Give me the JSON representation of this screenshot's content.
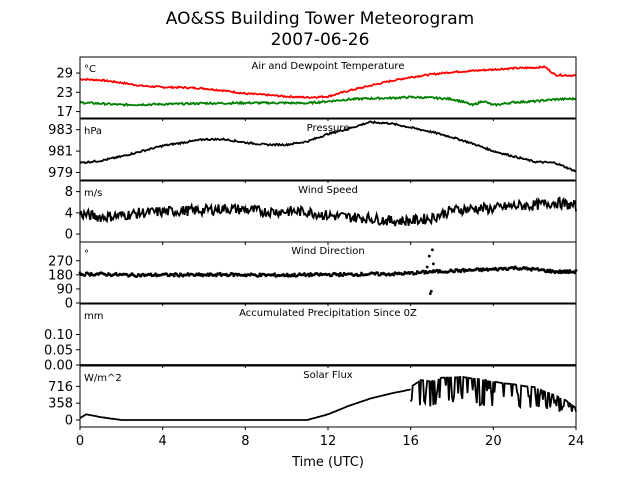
{
  "figure": {
    "title_line1": "AO&SS Building Tower Meteorogram",
    "title_line2": "2007-06-26",
    "xlabel": "Time (UTC)"
  },
  "chart_data": [
    {
      "type": "line",
      "title": "Air and Dewpoint Temperature",
      "unit_label": "°C",
      "ylim": [
        15,
        34
      ],
      "yticks": [
        17,
        23,
        29
      ],
      "xlim": [
        0,
        24
      ],
      "xticks": [
        0,
        4,
        8,
        12,
        16,
        20,
        24
      ],
      "series": [
        {
          "color": "#ff0000",
          "x": [
            0,
            1,
            2,
            3,
            4,
            5,
            6,
            7,
            8,
            9,
            10,
            11,
            12,
            13,
            14,
            15,
            16,
            17,
            18,
            19,
            20,
            21,
            22,
            22.5,
            23,
            24
          ],
          "y": [
            27.1,
            26.8,
            26.0,
            25.0,
            24.6,
            24.5,
            24.2,
            23.5,
            22.6,
            22.2,
            21.7,
            21.4,
            21.7,
            23.5,
            25.0,
            26.5,
            27.7,
            28.6,
            29.3,
            29.7,
            30.1,
            30.5,
            30.7,
            30.9,
            28.4,
            28.2
          ],
          "noise": 0.25
        },
        {
          "color": "#008000",
          "x": [
            0,
            1,
            2,
            3,
            4,
            5,
            6,
            7,
            8,
            9,
            10,
            11,
            12,
            13,
            14,
            15,
            16,
            17,
            18,
            18.5,
            19,
            19.5,
            20,
            21,
            22,
            23,
            24
          ],
          "y": [
            19.8,
            19.5,
            19.1,
            19.2,
            19.3,
            19.4,
            19.6,
            19.6,
            19.7,
            19.7,
            19.7,
            19.6,
            20.2,
            20.8,
            21.1,
            21.2,
            21.5,
            21.3,
            20.9,
            20.1,
            19.0,
            20.3,
            19.0,
            19.9,
            20.2,
            20.8,
            21.0
          ],
          "noise": 0.3
        }
      ]
    },
    {
      "type": "line",
      "title": "Pressure",
      "unit_label": "hPa",
      "ylim": [
        978.3,
        984.0
      ],
      "yticks": [
        979,
        981,
        983
      ],
      "xlim": [
        0,
        24
      ],
      "series": [
        {
          "color": "#000000",
          "x": [
            0,
            1,
            2,
            3,
            4,
            5,
            6,
            7,
            8,
            9,
            10,
            11,
            12,
            13,
            14,
            15,
            16,
            17,
            18,
            19,
            20,
            21,
            22,
            23,
            24
          ],
          "y": [
            979.9,
            980.1,
            980.5,
            981.0,
            981.5,
            981.8,
            982.1,
            982.1,
            981.8,
            981.6,
            981.6,
            981.9,
            982.6,
            983.1,
            983.7,
            983.6,
            983.2,
            982.8,
            982.3,
            981.7,
            981.0,
            980.5,
            980.0,
            979.9,
            979.1
          ],
          "noise": 0.08
        }
      ]
    },
    {
      "type": "line",
      "title": "Wind Speed",
      "unit_label": "m/s",
      "ylim": [
        -1.5,
        10
      ],
      "yticks": [
        0,
        4,
        8
      ],
      "xlim": [
        0,
        24
      ],
      "series": [
        {
          "color": "#000000",
          "x": [
            0,
            1,
            2,
            3,
            4,
            5,
            6,
            7,
            8,
            9,
            10,
            11,
            12,
            13,
            14,
            15,
            16,
            17,
            18,
            19,
            20,
            21,
            22,
            23,
            24
          ],
          "y": [
            3.8,
            3.2,
            3.5,
            4.0,
            4.2,
            4.4,
            4.5,
            4.8,
            4.6,
            4.2,
            4.3,
            4.2,
            3.5,
            3.2,
            3.0,
            2.5,
            2.5,
            3.0,
            4.5,
            4.8,
            4.8,
            5.3,
            5.4,
            6.0,
            5.2
          ],
          "noise": 1.0
        }
      ]
    },
    {
      "type": "scatter",
      "title": "Wind Direction",
      "unit_label": "°",
      "ylim": [
        0,
        390
      ],
      "yticks": [
        0,
        90,
        180,
        270
      ],
      "xlim": [
        0,
        24
      ],
      "series": [
        {
          "color": "#000000",
          "x": [
            0,
            1,
            2,
            3,
            4,
            5,
            6,
            7,
            8,
            9,
            10,
            11,
            12,
            13,
            14,
            15,
            16,
            17,
            18,
            19,
            20,
            21,
            22,
            23,
            24
          ],
          "y": [
            185,
            185,
            180,
            178,
            180,
            180,
            178,
            182,
            180,
            178,
            178,
            180,
            182,
            182,
            185,
            185,
            190,
            200,
            205,
            210,
            215,
            225,
            215,
            200,
            200
          ],
          "noise": 9
        }
      ]
    },
    {
      "type": "line",
      "title": "Accumulated Precipitation Since 0Z",
      "unit_label": "mm",
      "ylim": [
        0,
        0.2
      ],
      "yticks": [
        0.0,
        0.05,
        0.1
      ],
      "ytick_labels": [
        "0.00",
        "0.05",
        "0.10"
      ],
      "xlim": [
        0,
        24
      ],
      "series": [
        {
          "color": "#000000",
          "x": [
            0,
            24
          ],
          "y": [
            0,
            0
          ],
          "noise": 0
        }
      ]
    },
    {
      "type": "line",
      "title": "Solar Flux",
      "unit_label": "W/m^2",
      "ylim": [
        -150,
        1150
      ],
      "yticks": [
        0,
        358,
        716
      ],
      "xlim": [
        0,
        24
      ],
      "xticks": [
        0,
        4,
        8,
        12,
        16,
        20,
        24
      ],
      "series": [
        {
          "color": "#000000",
          "x": [
            0,
            0.3,
            1,
            2,
            4,
            6,
            8,
            10,
            11,
            12,
            13,
            14,
            15,
            16
          ],
          "y": [
            40,
            120,
            60,
            0,
            0,
            0,
            0,
            0,
            0,
            120,
            300,
            450,
            560,
            650
          ],
          "noise": 0
        },
        {
          "color": "#000000",
          "x": [
            16,
            16.5,
            17,
            17.5,
            18,
            18.5,
            19,
            19.5,
            20,
            20.5,
            21,
            21.5,
            22,
            22.5,
            23,
            23.5,
            24
          ],
          "y": [
            700,
            850,
            820,
            900,
            900,
            920,
            880,
            860,
            820,
            780,
            760,
            720,
            700,
            600,
            520,
            420,
            250
          ],
          "noise": 0,
          "choppy": true
        }
      ]
    }
  ]
}
